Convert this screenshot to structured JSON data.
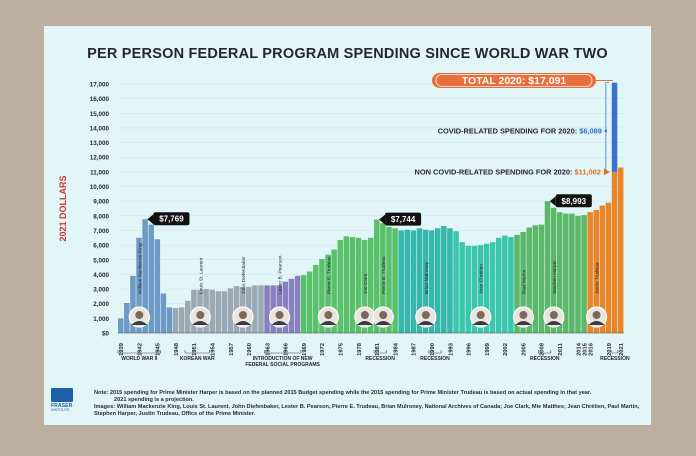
{
  "title": "PER PERSON FEDERAL PROGRAM SPENDING SINCE WORLD WAR TWO",
  "colors": {
    "background": "#bcaea1",
    "poster": "#e2f6f8",
    "ww2": "#6d9ac4",
    "post_war": "#9aa9b4",
    "programs": "#8a7fbf",
    "trudeau_era": "#5ac06a",
    "mulroney": "#37b6ab",
    "chretien": "#3cc6ad",
    "harper": "#5ab868",
    "trudeau_bar": "#e9862a",
    "covid_bar": "#3f6fcc",
    "total_badge": "#e86e3b",
    "covid_text": "#2f6ad0",
    "noncovid_text": "#e07020",
    "ylabel": "#d0342c"
  },
  "chart_data": {
    "type": "bar",
    "title": "PER PERSON FEDERAL PROGRAM SPENDING SINCE WORLD WAR TWO",
    "ylabel": "2021 DOLLARS",
    "ylim": [
      0,
      17000
    ],
    "yticks": [
      "$0",
      "1,000",
      "2,000",
      "3,000",
      "4,000",
      "5,000",
      "6,000",
      "7,000",
      "8,000",
      "9,000",
      "10,000",
      "11,000",
      "12,000",
      "13,000",
      "14,000",
      "15,000",
      "16,000",
      "17,000"
    ],
    "x_tick_labels": [
      "1939",
      "1942",
      "1945",
      "1948",
      "1951",
      "1954",
      "1957",
      "1960",
      "1963",
      "1966",
      "1969",
      "1972",
      "1975",
      "1978",
      "1981",
      "1984",
      "1987",
      "1990",
      "1993",
      "1996",
      "1999",
      "2002",
      "2005",
      "2008",
      "2011",
      "2014",
      "2015",
      "2016",
      "2019",
      "2021"
    ],
    "years": [
      1939,
      1940,
      1941,
      1942,
      1943,
      1944,
      1945,
      1946,
      1947,
      1948,
      1949,
      1950,
      1951,
      1952,
      1953,
      1954,
      1955,
      1956,
      1957,
      1958,
      1959,
      1960,
      1961,
      1962,
      1963,
      1964,
      1965,
      1966,
      1967,
      1968,
      1969,
      1970,
      1971,
      1972,
      1973,
      1974,
      1975,
      1976,
      1977,
      1978,
      1979,
      1980,
      1981,
      1982,
      1983,
      1984,
      1985,
      1986,
      1987,
      1988,
      1989,
      1990,
      1991,
      1992,
      1993,
      1994,
      1995,
      1996,
      1997,
      1998,
      1999,
      2000,
      2001,
      2002,
      2003,
      2004,
      2005,
      2006,
      2007,
      2008,
      2009,
      2010,
      2011,
      2012,
      2013,
      2014,
      2015,
      2016,
      2017,
      2018,
      2019,
      2020,
      2021
    ],
    "values": [
      1000,
      2050,
      3900,
      6500,
      7769,
      7400,
      6400,
      2700,
      1750,
      1700,
      1750,
      2200,
      2950,
      2950,
      3000,
      2950,
      2850,
      2850,
      3050,
      3200,
      3150,
      3150,
      3250,
      3250,
      3250,
      3250,
      3250,
      3500,
      3700,
      3900,
      3950,
      4200,
      4650,
      5050,
      5350,
      5700,
      6350,
      6600,
      6550,
      6500,
      6350,
      6500,
      7744,
      7500,
      7250,
      7150,
      7000,
      7050,
      7000,
      7150,
      7050,
      7000,
      7150,
      7300,
      7150,
      6950,
      6200,
      5950,
      5950,
      6000,
      6100,
      6200,
      6500,
      6650,
      6550,
      6700,
      6900,
      7200,
      7350,
      7400,
      8993,
      8550,
      8250,
      8150,
      8150,
      8000,
      8050,
      8250,
      8400,
      8700,
      8900,
      17091,
      11300
    ],
    "covid_2020": 6089,
    "noncovid_2020": 11002,
    "total_2020": 17091,
    "peaks": [
      {
        "year": 1943,
        "label": "$7,769"
      },
      {
        "year": 1981,
        "label": "$7,744"
      },
      {
        "year": 2009,
        "label": "$8,993"
      }
    ],
    "era_bands": [
      {
        "label": "WORLD WAR II",
        "from": 1939,
        "to": 1945
      },
      {
        "label": "KOREAN WAR",
        "from": 1950,
        "to": 1953
      },
      {
        "label": "INTRODUCTION OF NEW FEDERAL SOCIAL PROGRAMS",
        "from": 1963,
        "to": 1968
      },
      {
        "label": "RECESSION",
        "from": 1981,
        "to": 1982
      },
      {
        "label": "RECESSION",
        "from": 1990,
        "to": 1991
      },
      {
        "label": "RECESSION",
        "from": 2008,
        "to": 2009
      },
      {
        "label": "RECESSION",
        "from": 2020,
        "to": 2020
      }
    ],
    "leaders": [
      {
        "name": "William Mackenzie King",
        "year": 1942
      },
      {
        "name": "Louis St. Laurent",
        "year": 1952
      },
      {
        "name": "John Diefenbaker",
        "year": 1959
      },
      {
        "name": "Lester B. Pearson",
        "year": 1965
      },
      {
        "name": "Pierre E. Trudeau",
        "year": 1973
      },
      {
        "name": "Joe Clark",
        "year": 1979
      },
      {
        "name": "Pierre E. Trudeau",
        "year": 1982
      },
      {
        "name": "Brian Mulroney",
        "year": 1989
      },
      {
        "name": "Jean Chrétien",
        "year": 1998
      },
      {
        "name": "Paul Martin",
        "year": 2005
      },
      {
        "name": "Stephen Harper",
        "year": 2010
      },
      {
        "name": "Justin Trudeau",
        "year": 2017
      }
    ],
    "annotations": {
      "total": "TOTAL 2020: $17,091",
      "covid_prefix": "COVID-RELATED SPENDING FOR 2020: ",
      "covid_value": "$6,089",
      "noncovid_prefix": "NON COVID-RELATED SPENDING FOR 2020: ",
      "noncovid_value": "$11,002"
    }
  },
  "footer": {
    "note": "Note: 2015 spending for Prime Minister Harper is based on the planned 2015 Budget spending while the 2015 spending for Prime Minister Trudeau is based on actual spending in that year.",
    "note2": "2021 spending is a projection.",
    "images": "Images: William Mackenzie King, Louis St. Laurent, John Diefenbaker, Lester B. Pearson, Pierre E. Trudeau, Brian Mulroney, National Archives of Canada; Joe Clark, Mie Matthes; Jean Chrétien, Paul Martin, Stephen Harper, Justin Trudeau, Office of the Prime Minister.",
    "logo_text": "FRASER",
    "logo_sub": "INSTITUTE"
  }
}
